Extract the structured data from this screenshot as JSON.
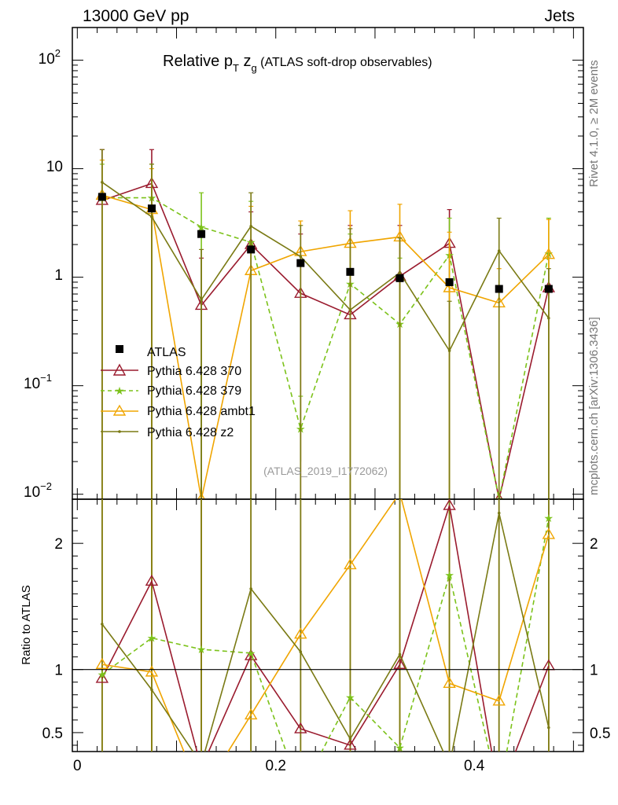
{
  "header": {
    "left": "13000 GeV pp",
    "right": "Jets"
  },
  "side_labels": {
    "rivet": "Rivet 4.1.0, ≥ 2M events",
    "mcplots": "mcplots.cern.ch [arXiv:1306.3436]"
  },
  "chart_data": [
    {
      "type": "line",
      "title_main": "Relative p",
      "title_sub_t": "T",
      "title_z": " z",
      "title_sub_g": "g",
      "title_rest": " (ATLAS soft-drop observables)",
      "analysis_id": "(ATLAS_2019_I1772062)",
      "yscale": "log",
      "ylim": [
        0.009,
        200
      ],
      "xlim": [
        -0.005,
        0.51
      ],
      "ytick_labels": [
        {
          "base": "10",
          "exp": "2",
          "value": 100
        },
        {
          "base": "10",
          "exp": "",
          "value": 10
        },
        {
          "base": "1",
          "exp": "",
          "value": 1
        },
        {
          "base": "10",
          "exp": "−1",
          "value": 0.1
        },
        {
          "base": "10",
          "exp": "−2",
          "value": 0.01
        }
      ],
      "x": [
        0.025,
        0.075,
        0.125,
        0.175,
        0.225,
        0.275,
        0.325,
        0.375,
        0.425,
        0.475
      ],
      "legend_position": "lower-left",
      "series": [
        {
          "name": "ATLAS",
          "color": "#000000",
          "marker": "square",
          "values": [
            5.5,
            4.3,
            2.5,
            1.8,
            1.35,
            1.12,
            0.98,
            0.9,
            0.78,
            0.78
          ]
        },
        {
          "name": "Pythia 6.428 370",
          "color": "#9a1b2e",
          "marker": "triangle-open",
          "dash": false,
          "values": [
            5.1,
            7.3,
            0.55,
            2.0,
            0.71,
            0.45,
            1.02,
            2.05,
            0.009,
            0.8
          ],
          "err_hi": [
            15,
            15,
            1.5,
            4,
            2.5,
            3,
            3,
            4.2,
            0,
            1.5
          ],
          "err_lo": [
            0.009,
            0.009,
            0.009,
            0.009,
            0.009,
            0.009,
            0.009,
            0.009,
            0,
            0.009
          ]
        },
        {
          "name": "Pythia 6.428 379",
          "color": "#7cc21a",
          "marker": "star",
          "dash": true,
          "values": [
            5.4,
            5.4,
            2.9,
            2.1,
            0.04,
            0.87,
            0.37,
            1.6,
            0.009,
            1.65
          ],
          "err_hi": [
            11,
            11,
            6,
            5,
            0.08,
            2.5,
            1.5,
            3.5,
            0,
            3.5
          ],
          "err_lo": [
            0.009,
            0.009,
            0.009,
            0.009,
            0.02,
            0.009,
            0.009,
            0.009,
            0,
            0.009
          ]
        },
        {
          "name": "Pythia 6.428 ambt1",
          "color": "#f0a500",
          "marker": "triangle-open",
          "dash": false,
          "values": [
            5.7,
            4.2,
            0.009,
            1.15,
            1.72,
            2.05,
            2.35,
            0.8,
            0.58,
            1.62
          ],
          "err_hi": [
            12,
            10,
            0,
            4.5,
            3.3,
            4.1,
            4.7,
            2.6,
            1.2,
            3.4
          ],
          "err_lo": [
            0.009,
            0.009,
            0,
            0.009,
            0.009,
            0.009,
            0.009,
            0.009,
            0.009,
            0.009
          ]
        },
        {
          "name": "Pythia 6.428 z2",
          "color": "#7a7a14",
          "marker": "dot",
          "dash": false,
          "values": [
            7.5,
            3.6,
            0.62,
            2.95,
            1.55,
            0.5,
            1.1,
            0.21,
            1.75,
            0.42
          ],
          "err_hi": [
            15,
            11,
            1.8,
            6,
            3,
            2.8,
            2.3,
            0.6,
            3.5,
            1.2
          ],
          "err_lo": [
            0.009,
            0.009,
            0.009,
            0.009,
            0.009,
            0.009,
            0.009,
            0.009,
            0.009,
            0.009
          ]
        }
      ]
    },
    {
      "type": "line",
      "ylabel": "Ratio to ATLAS",
      "ylim": [
        0.35,
        2.35
      ],
      "xlim": [
        -0.005,
        0.51
      ],
      "y_ticks": [
        0.5,
        1,
        2
      ],
      "y_tick_labels": [
        "0.5",
        "1",
        "2"
      ],
      "x_ticks": [
        0,
        0.2,
        0.4
      ],
      "x_tick_labels": [
        "0",
        "0.2",
        "0.4"
      ],
      "x": [
        0.025,
        0.075,
        0.125,
        0.175,
        0.225,
        0.275,
        0.325,
        0.375,
        0.425,
        0.475
      ],
      "series": [
        {
          "name": "Pythia 6.428 370",
          "color": "#9a1b2e",
          "values": [
            0.93,
            1.7,
            0.22,
            1.11,
            0.53,
            0.4,
            1.04,
            2.3,
            0.01,
            1.03
          ]
        },
        {
          "name": "Pythia 6.428 379",
          "color": "#7cc21a",
          "values": [
            0.96,
            1.25,
            1.16,
            1.13,
            0.03,
            0.78,
            0.38,
            1.75,
            0.01,
            2.2
          ]
        },
        {
          "name": "Pythia 6.428 ambt1",
          "color": "#f0a500",
          "values": [
            1.04,
            0.98,
            0.01,
            0.64,
            1.28,
            1.83,
            2.4,
            0.89,
            0.75,
            2.07
          ]
        },
        {
          "name": "Pythia 6.428 z2",
          "color": "#7a7a14",
          "values": [
            1.36,
            0.84,
            0.25,
            1.64,
            1.14,
            0.45,
            1.12,
            0.24,
            2.24,
            0.54
          ]
        }
      ]
    }
  ]
}
